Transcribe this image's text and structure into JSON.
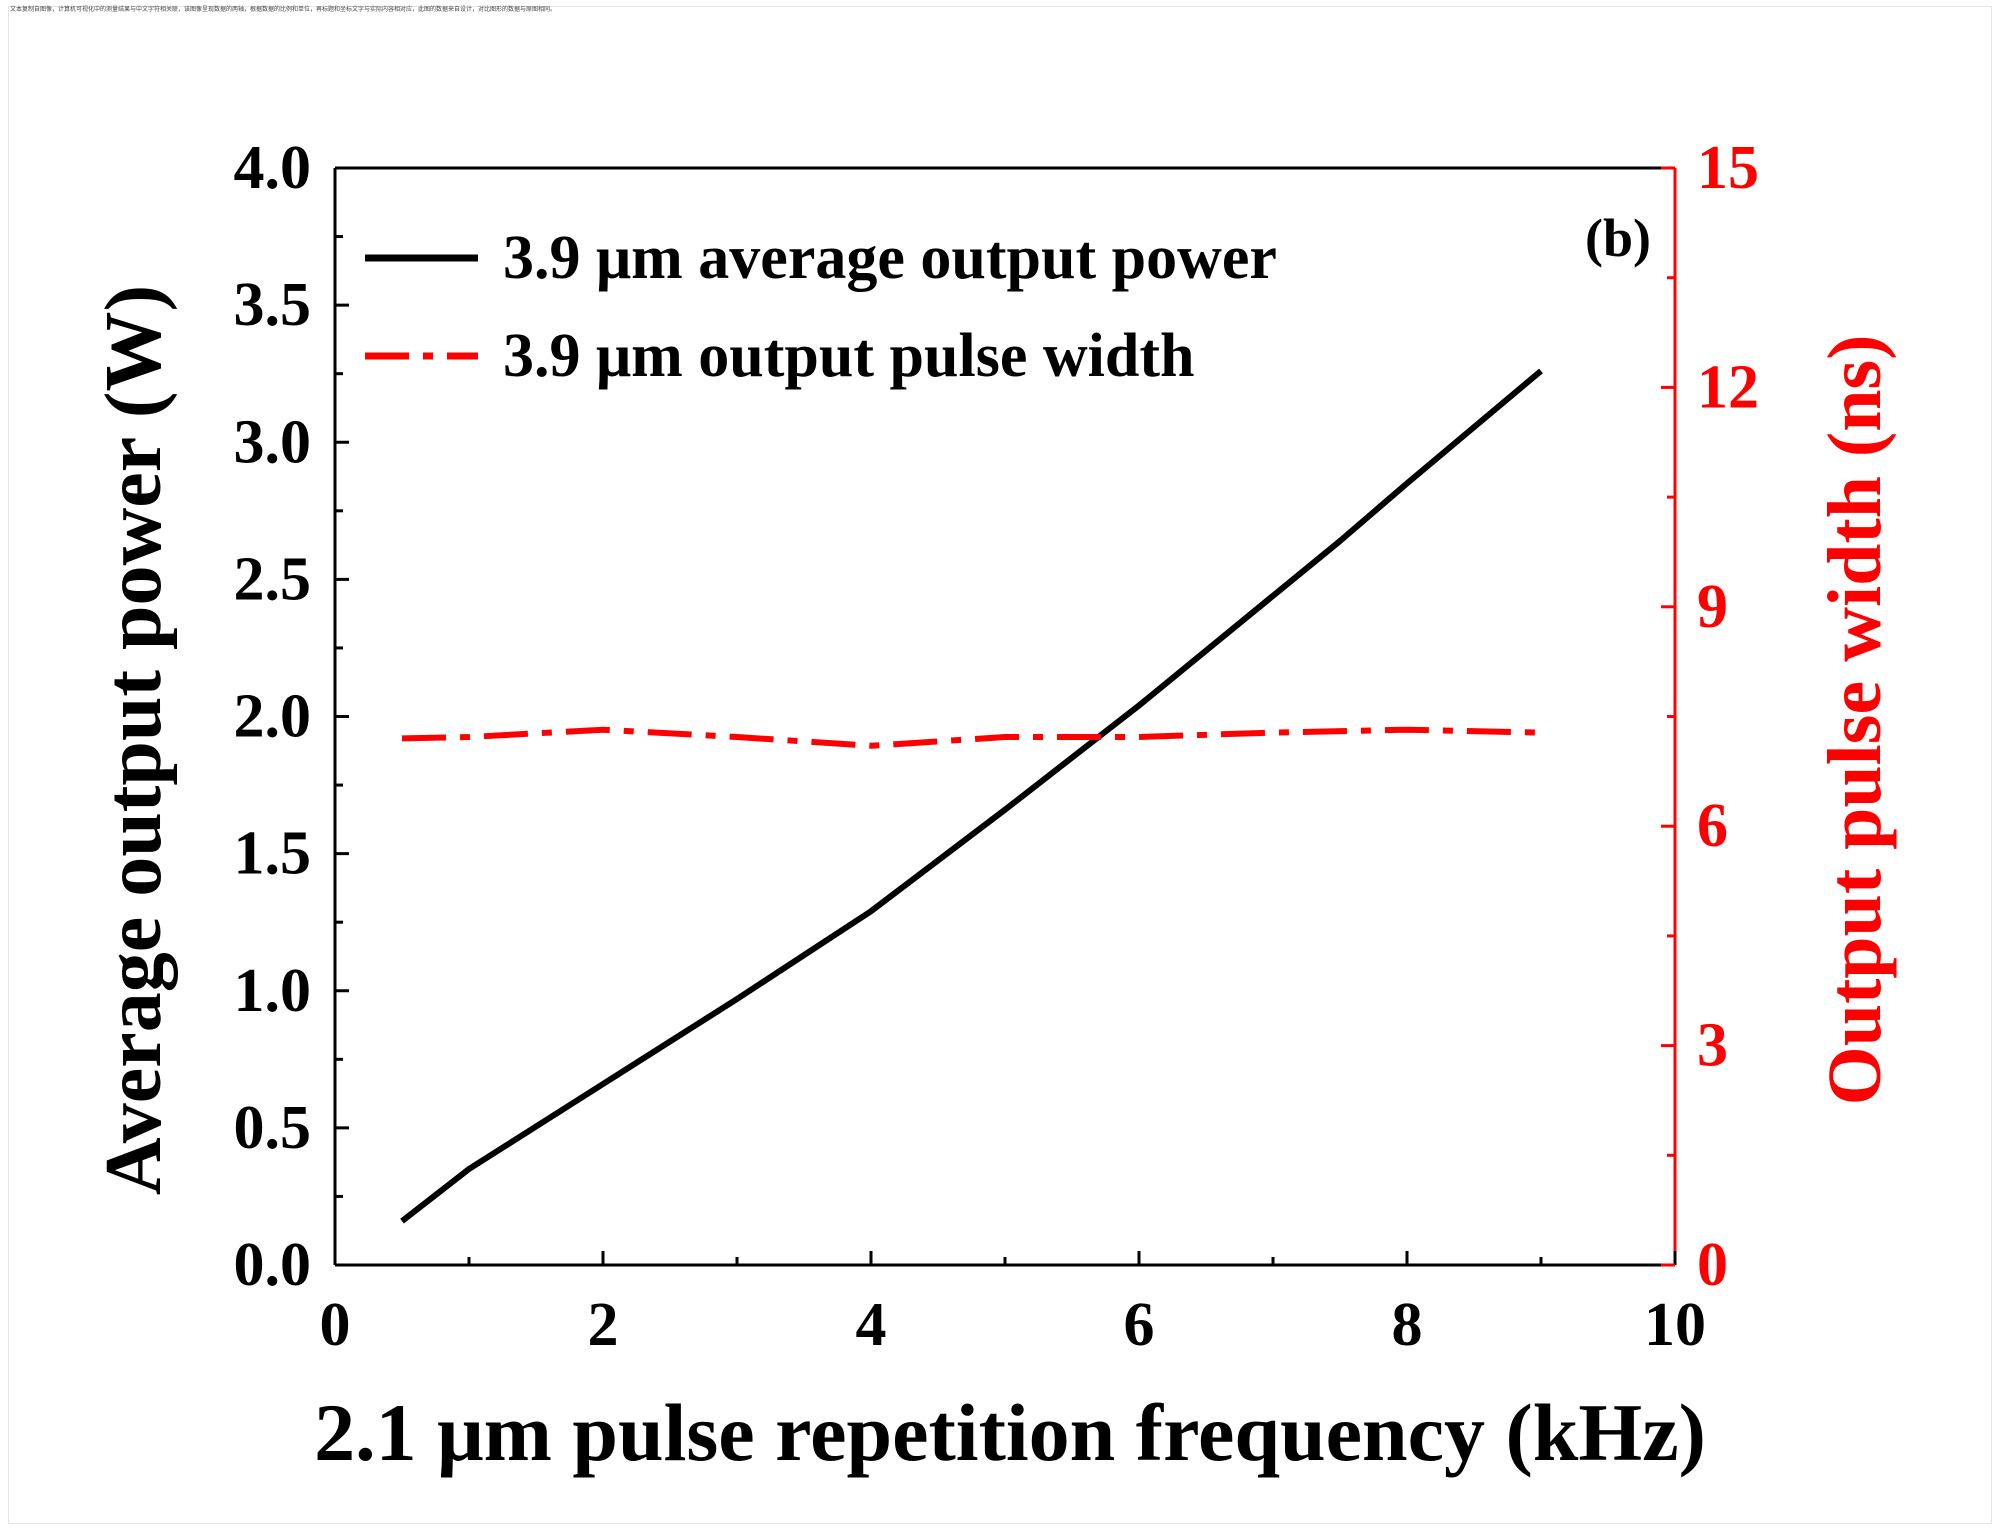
{
  "top_note": "文本复制自图像，计算机可视化中的测量结果与中文字符相关联，该图像呈现数据的两轴，根据数据的比例和单位，再标题和坐标文字与实际内容相对应，此图的数据来自设计，对比图形的数据与原图相同。",
  "chart_data": {
    "type": "line",
    "panel_label": "(b)",
    "xlabel": "2.1 μm pulse repetition frequency (kHz)",
    "ylabel": "Average output power (W)",
    "y2label": "Output pulse width (ns)",
    "xlim": [
      0,
      10
    ],
    "ylim": [
      0,
      4
    ],
    "y2lim": [
      0,
      15
    ],
    "x_ticks": [
      "0",
      "2",
      "4",
      "6",
      "8",
      "10"
    ],
    "y_ticks": [
      "0.0",
      "0.5",
      "1.0",
      "1.5",
      "2.0",
      "2.5",
      "3.0",
      "3.5",
      "4.0"
    ],
    "y2_ticks": [
      "0",
      "3",
      "6",
      "9",
      "12",
      "15"
    ],
    "grid": false,
    "legend_position": "top-left",
    "series": [
      {
        "name": "3.9 μm average output power",
        "axis": "left",
        "color": "#000000",
        "style": "solid",
        "x": [
          0.5,
          1,
          2,
          3,
          4,
          5,
          6,
          7,
          7.5,
          8,
          9
        ],
        "y": [
          0.16,
          0.35,
          0.66,
          0.97,
          1.29,
          1.66,
          2.04,
          2.44,
          2.64,
          2.85,
          3.26
        ]
      },
      {
        "name": "3.9 μm output pulse width",
        "axis": "right",
        "color": "#ff0000",
        "style": "dash-dot",
        "x": [
          0.5,
          1,
          2,
          3,
          4,
          5,
          6,
          7,
          8,
          9
        ],
        "y": [
          7.2,
          7.22,
          7.32,
          7.22,
          7.1,
          7.22,
          7.22,
          7.28,
          7.32,
          7.28
        ]
      }
    ]
  }
}
